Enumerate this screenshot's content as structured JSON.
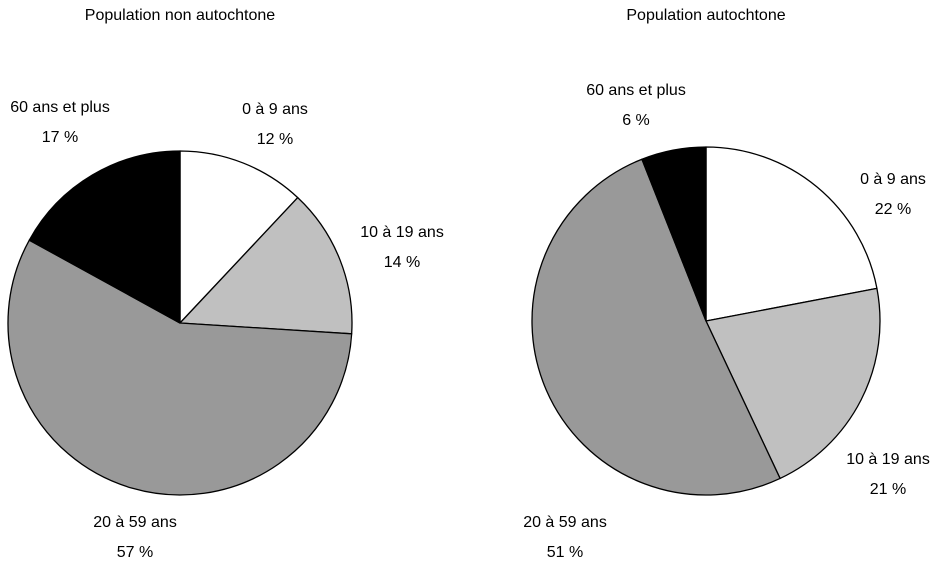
{
  "chart_data": [
    {
      "type": "pie",
      "title": "Population non autochtone",
      "categories": [
        "0 à 9 ans",
        "10 à 19 ans",
        "20 à 59 ans",
        "60 ans et plus"
      ],
      "values": [
        12,
        14,
        57,
        17
      ],
      "value_labels": [
        "12 %",
        "14 %",
        "57 %",
        "17 %"
      ],
      "colors": [
        "#ffffff",
        "#c0c0c0",
        "#999999",
        "#000000"
      ]
    },
    {
      "type": "pie",
      "title": "Population autochtone",
      "categories": [
        "0 à 9 ans",
        "10 à 19 ans",
        "20 à 59 ans",
        "60 ans et plus"
      ],
      "values": [
        22,
        21,
        51,
        6
      ],
      "value_labels": [
        "22 %",
        "21 %",
        "51 %",
        "6 %"
      ],
      "colors": [
        "#ffffff",
        "#c0c0c0",
        "#999999",
        "#000000"
      ]
    }
  ]
}
